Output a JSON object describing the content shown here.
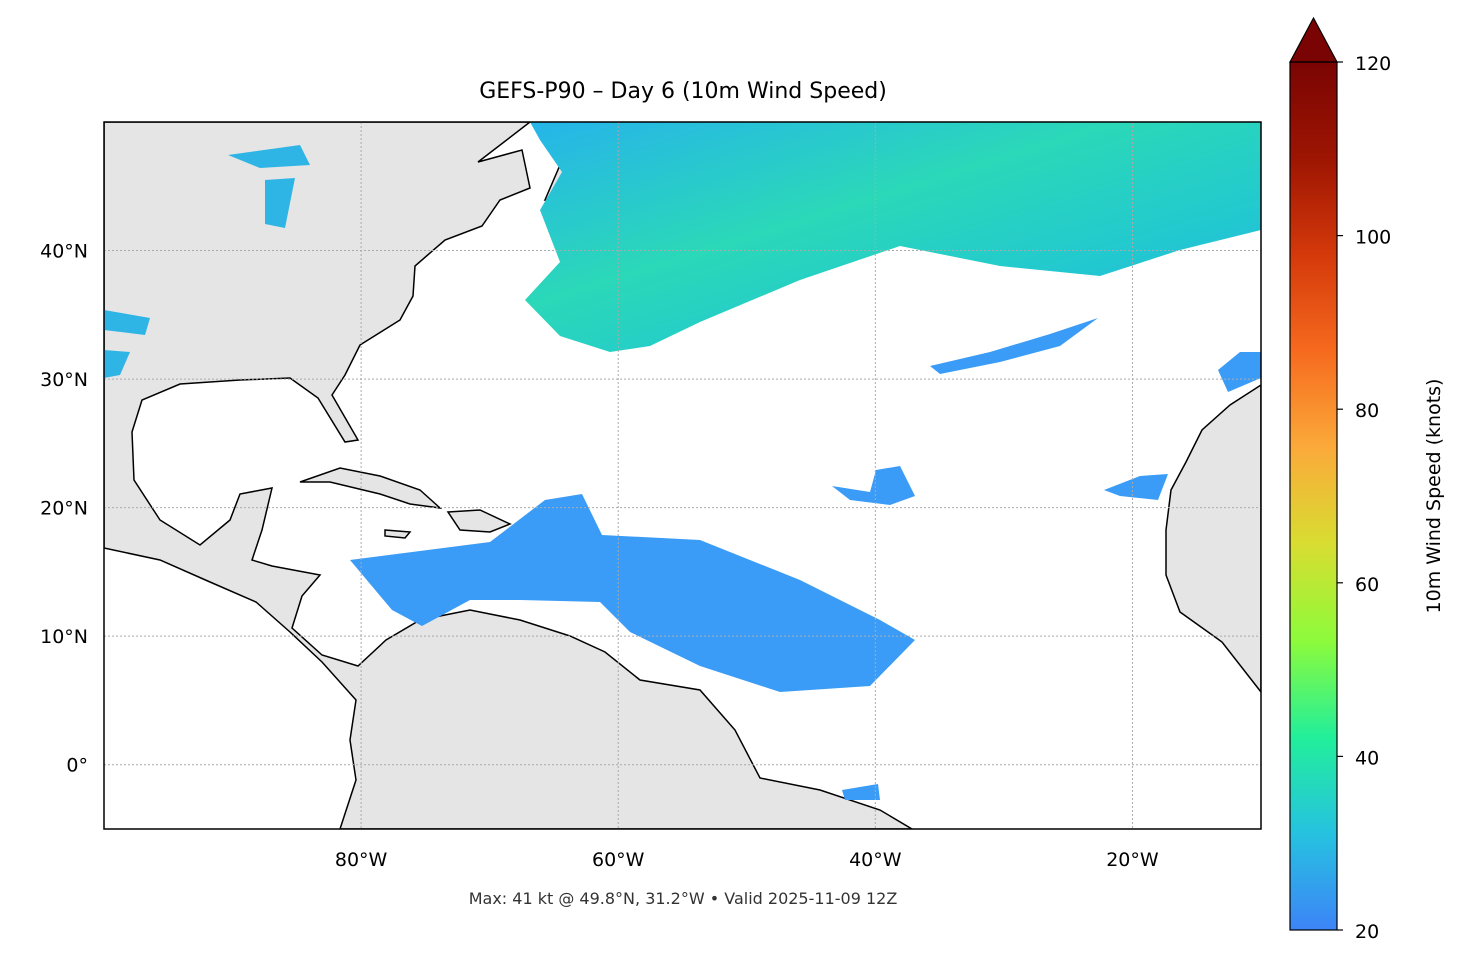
{
  "chart_data": {
    "type": "map",
    "title": "GEFS-P90 – Day 6 (10m Wind Speed)",
    "note": "Max: 41 kt @ 49.8°N, 31.2°W • Valid 2025-11-09 12Z",
    "xlim": [
      -100,
      -10
    ],
    "ylim": [
      -5,
      50
    ],
    "xticks": [
      {
        "value": -80,
        "label": "80°W"
      },
      {
        "value": -60,
        "label": "60°W"
      },
      {
        "value": -40,
        "label": "40°W"
      },
      {
        "value": -20,
        "label": "20°W"
      }
    ],
    "yticks": [
      {
        "value": 0,
        "label": "0°"
      },
      {
        "value": 10,
        "label": "10°N"
      },
      {
        "value": 20,
        "label": "20°N"
      },
      {
        "value": 30,
        "label": "30°N"
      },
      {
        "value": 40,
        "label": "40°N"
      }
    ],
    "grid": true,
    "colorbar": {
      "label": "10m Wind Speed (knots)",
      "lim": [
        20,
        120
      ],
      "ticks": [
        20,
        40,
        60,
        80,
        100,
        120
      ],
      "extend": "max",
      "colors": [
        "#3d84f7",
        "#26c2e0",
        "#22ef9a",
        "#8dfb3b",
        "#d8dd31",
        "#fbaa3a",
        "#f66a1e",
        "#d4390a",
        "#9d1502",
        "#7a0403"
      ]
    }
  }
}
